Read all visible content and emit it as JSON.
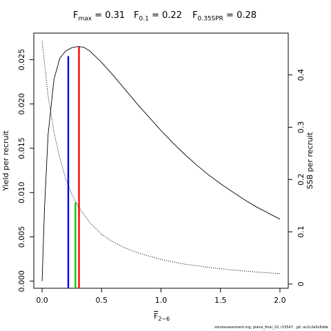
{
  "title": {
    "fmax_label": "F",
    "fmax_sub": "max",
    "fmax_value": " = 0.31",
    "f01_label": "F",
    "f01_sub": "0.1",
    "f01_value": " = 0.22",
    "fspr_label": "F",
    "fspr_sub": "0.35SPR",
    "fspr_value": " = 0.28"
  },
  "footer": "stockassessment.org, plaice_final_10, r15547 , git: ec2c2a0c6dde",
  "chart_data": {
    "type": "line",
    "xlabel_main": "F",
    "xlabel_sub": "2−6",
    "ylabel_left": "Yield per recruit",
    "ylabel_right": "SSB per recruit",
    "xlim": [
      -0.07,
      2.07
    ],
    "ylim_left": [
      -0.0008,
      0.028
    ],
    "ylim_right": [
      -0.008,
      0.48
    ],
    "x_ticks": [
      0,
      0.5,
      1,
      1.5,
      2
    ],
    "x_tick_labels": [
      "0.0",
      "0.5",
      "1.0",
      "1.5",
      "2.0"
    ],
    "y_left_ticks": [
      0,
      0.005,
      0.01,
      0.015,
      0.02,
      0.025
    ],
    "y_left_tick_labels": [
      "0.000",
      "0.005",
      "0.010",
      "0.015",
      "0.020",
      "0.025"
    ],
    "y_right_ticks": [
      0,
      0.1,
      0.2,
      0.3,
      0.4
    ],
    "y_right_tick_labels": [
      "0",
      "0.1",
      "0.2",
      "0.3",
      "0.4"
    ],
    "series": [
      {
        "axis": "left",
        "style": "solid",
        "color": "#000000",
        "x": [
          0,
          0.02,
          0.05,
          0.1,
          0.15,
          0.2,
          0.25,
          0.3,
          0.31,
          0.35,
          0.4,
          0.5,
          0.6,
          0.7,
          0.8,
          0.9,
          1.0,
          1.1,
          1.2,
          1.3,
          1.4,
          1.5,
          1.6,
          1.7,
          1.8,
          1.9,
          2.0
        ],
        "y": [
          0.0,
          0.0082,
          0.0165,
          0.0228,
          0.0252,
          0.026,
          0.02635,
          0.02648,
          0.02648,
          0.0264,
          0.026,
          0.0247,
          0.0232,
          0.0216,
          0.02,
          0.0185,
          0.017,
          0.0156,
          0.0143,
          0.0131,
          0.012,
          0.011,
          0.0101,
          0.0092,
          0.0084,
          0.0077,
          0.007
        ]
      },
      {
        "axis": "right",
        "style": "dotted",
        "color": "#000000",
        "x": [
          0,
          0.05,
          0.1,
          0.15,
          0.2,
          0.25,
          0.3,
          0.4,
          0.5,
          0.6,
          0.7,
          0.8,
          1.0,
          1.2,
          1.4,
          1.6,
          1.8,
          2.0
        ],
        "y": [
          0.465,
          0.36,
          0.29,
          0.24,
          0.2,
          0.172,
          0.15,
          0.118,
          0.095,
          0.08,
          0.069,
          0.06,
          0.047,
          0.038,
          0.032,
          0.027,
          0.023,
          0.02
        ]
      }
    ],
    "reference_lines": [
      {
        "name": "F0.1",
        "x": 0.22,
        "y_bottom": -0.0008,
        "y_top": 0.0254,
        "color": "#0000ff"
      },
      {
        "name": "F0.35SPR",
        "x": 0.28,
        "y_bottom": -0.0008,
        "y_top": 0.0089,
        "color": "#00cc00"
      },
      {
        "name": "Fmax",
        "x": 0.31,
        "y_bottom": -0.0008,
        "y_top": 0.02648,
        "color": "#ff0000"
      }
    ]
  }
}
